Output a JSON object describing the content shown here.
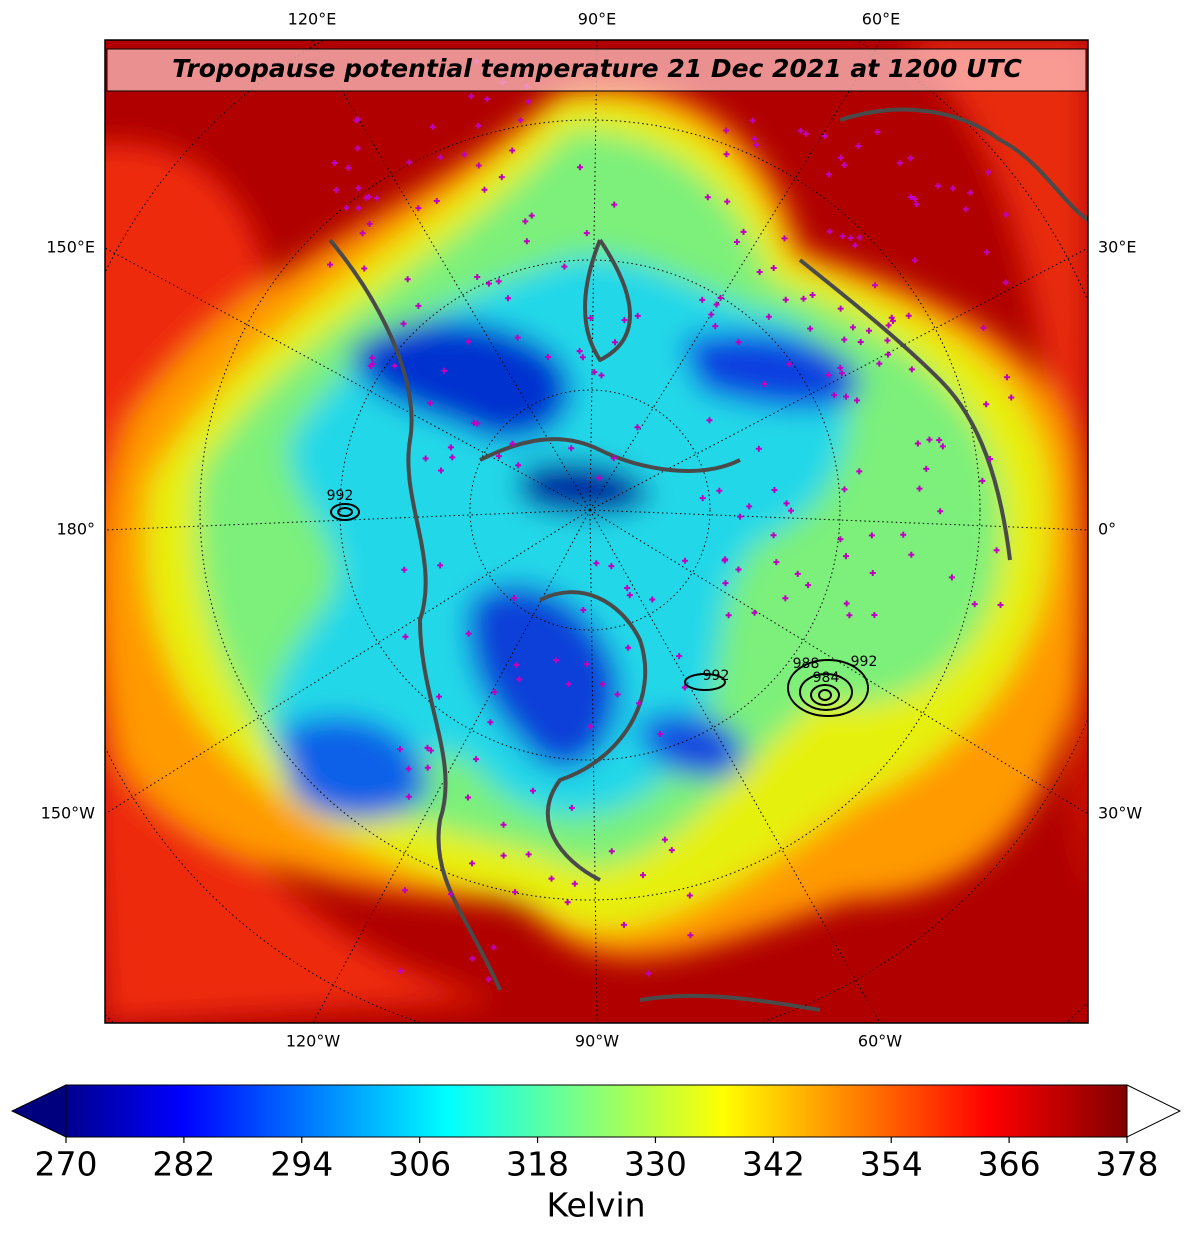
{
  "title": "Tropopause potential temperature 21 Dec 2021 at 1200 UTC",
  "longitude_labels": {
    "top": [
      "120°E",
      "90°E",
      "60°E"
    ],
    "bottom": [
      "120°W",
      "90°W",
      "60°W"
    ],
    "left": [
      "150°E",
      "180°",
      "150°W"
    ],
    "right": [
      "30°E",
      "0°",
      "30°W"
    ]
  },
  "contour_labels": [
    "992",
    "992",
    "992",
    "988",
    "984"
  ],
  "colorbar": {
    "vlim": [
      270,
      378
    ],
    "ticks": [
      270,
      282,
      294,
      306,
      318,
      330,
      342,
      354,
      366,
      378
    ],
    "label": "Kelvin",
    "extend": "both",
    "colormap": "jet"
  }
}
